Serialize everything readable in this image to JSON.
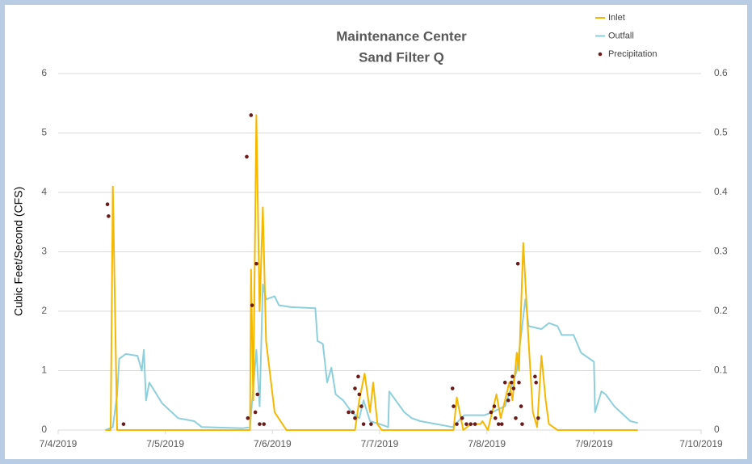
{
  "chart_data": {
    "type": "line",
    "title": "Maintenance Center",
    "subtitle": "Sand Filter Q",
    "y_label": "Cubic Feet/Second (CFS)",
    "xlim": [
      0,
      6
    ],
    "xticks": [
      {
        "value": 0,
        "label": "7/4/2019"
      },
      {
        "value": 1,
        "label": "7/5/2019"
      },
      {
        "value": 2,
        "label": "7/6/2019"
      },
      {
        "value": 3,
        "label": "7/7/2019"
      },
      {
        "value": 4,
        "label": "7/8/2019"
      },
      {
        "value": 5,
        "label": "7/9/2019"
      },
      {
        "value": 6,
        "label": "7/10/2019"
      }
    ],
    "ylim": [
      0,
      6
    ],
    "yticks": [
      0,
      1,
      2,
      3,
      4,
      5,
      6
    ],
    "y2lim": [
      0,
      0.6
    ],
    "y2ticks": [
      0,
      0.1,
      0.2,
      0.3,
      0.4,
      0.5,
      0.6
    ],
    "grid": true,
    "legend": "top-right",
    "series": [
      {
        "name": "Inlet",
        "type": "line",
        "color": "#f5b800",
        "x": [
          0.44,
          0.49,
          0.51,
          0.55,
          1.79,
          1.8,
          1.82,
          1.85,
          1.88,
          1.91,
          1.94,
          2.02,
          2.13,
          2.77,
          2.81,
          2.86,
          2.91,
          2.94,
          2.98,
          3.02,
          3.69,
          3.72,
          3.78,
          3.85,
          3.94,
          3.96,
          4.01,
          4.09,
          4.13,
          4.21,
          4.24,
          4.28,
          4.3,
          4.34,
          4.39,
          4.43,
          4.47,
          4.51,
          4.55,
          4.58,
          4.66,
          5.41
        ],
        "values": [
          0,
          0,
          4.1,
          0,
          0,
          2.7,
          0.5,
          5.3,
          2.0,
          3.75,
          1.5,
          0.3,
          0,
          0,
          0.5,
          0.95,
          0.3,
          0.8,
          0.1,
          0,
          0,
          0.55,
          0,
          0.1,
          0.1,
          0.15,
          0,
          0.6,
          0.2,
          0.8,
          0.5,
          1.3,
          1.0,
          3.15,
          1.5,
          0.3,
          0.05,
          1.25,
          0.5,
          0.1,
          0,
          0
        ]
      },
      {
        "name": "Outfall",
        "type": "line",
        "color": "#8ecfdc",
        "x": [
          0.44,
          0.51,
          0.55,
          0.57,
          0.63,
          0.74,
          0.78,
          0.8,
          0.82,
          0.85,
          0.97,
          1.12,
          1.27,
          1.34,
          1.72,
          1.79,
          1.85,
          1.88,
          1.91,
          1.94,
          2.02,
          2.06,
          2.17,
          2.4,
          2.42,
          2.47,
          2.51,
          2.55,
          2.59,
          2.66,
          2.74,
          2.81,
          2.85,
          2.91,
          3.0,
          3.08,
          3.09,
          3.15,
          3.23,
          3.3,
          3.38,
          3.53,
          3.68,
          3.79,
          3.98,
          4.05,
          4.17,
          4.28,
          4.36,
          4.39,
          4.51,
          4.58,
          4.66,
          4.7,
          4.81,
          4.88,
          5.0,
          5.01,
          5.07,
          5.11,
          5.19,
          5.34,
          5.41
        ],
        "values": [
          0,
          0.05,
          0.6,
          1.2,
          1.28,
          1.25,
          1.0,
          1.35,
          0.5,
          0.8,
          0.45,
          0.2,
          0.15,
          0.05,
          0.03,
          0.05,
          1.35,
          0.4,
          2.45,
          2.2,
          2.25,
          2.1,
          2.07,
          2.05,
          1.5,
          1.45,
          0.8,
          1.05,
          0.6,
          0.5,
          0.3,
          0.2,
          0.5,
          0.15,
          0.1,
          0.05,
          0.65,
          0.5,
          0.3,
          0.2,
          0.15,
          0.1,
          0.05,
          0.25,
          0.25,
          0.3,
          0.4,
          1.0,
          2.2,
          1.75,
          1.7,
          1.8,
          1.75,
          1.6,
          1.6,
          1.3,
          1.15,
          0.3,
          0.65,
          0.6,
          0.4,
          0.15,
          0.12
        ]
      },
      {
        "name": "Precipitation",
        "type": "scatter",
        "axis": "y2",
        "color": "#6b1a1a",
        "x": [
          0.46,
          0.47,
          0.61,
          1.76,
          1.77,
          1.8,
          1.81,
          1.84,
          1.85,
          1.86,
          1.88,
          1.92,
          2.71,
          2.75,
          2.77,
          2.8,
          2.81,
          2.83,
          2.85,
          2.92,
          2.77,
          3.68,
          3.69,
          3.72,
          3.77,
          3.81,
          3.85,
          3.89,
          4.04,
          4.07,
          4.08,
          4.11,
          4.14,
          4.17,
          4.2,
          4.21,
          4.23,
          4.24,
          4.25,
          4.27,
          4.29,
          4.3,
          4.32,
          4.33,
          4.45,
          4.46,
          4.48
        ],
        "values": [
          0.38,
          0.36,
          0.01,
          0.46,
          0.02,
          0.53,
          0.21,
          0.03,
          0.28,
          0.06,
          0.01,
          0.01,
          0.03,
          0.03,
          0.02,
          0.09,
          0.06,
          0.04,
          0.01,
          0.01,
          0.07,
          0.07,
          0.04,
          0.01,
          0.02,
          0.01,
          0.01,
          0.01,
          0.03,
          0.04,
          0.02,
          0.01,
          0.01,
          0.08,
          0.05,
          0.06,
          0.08,
          0.09,
          0.07,
          0.02,
          0.28,
          0.08,
          0.04,
          0.01,
          0.09,
          0.08,
          0.02
        ]
      }
    ]
  }
}
